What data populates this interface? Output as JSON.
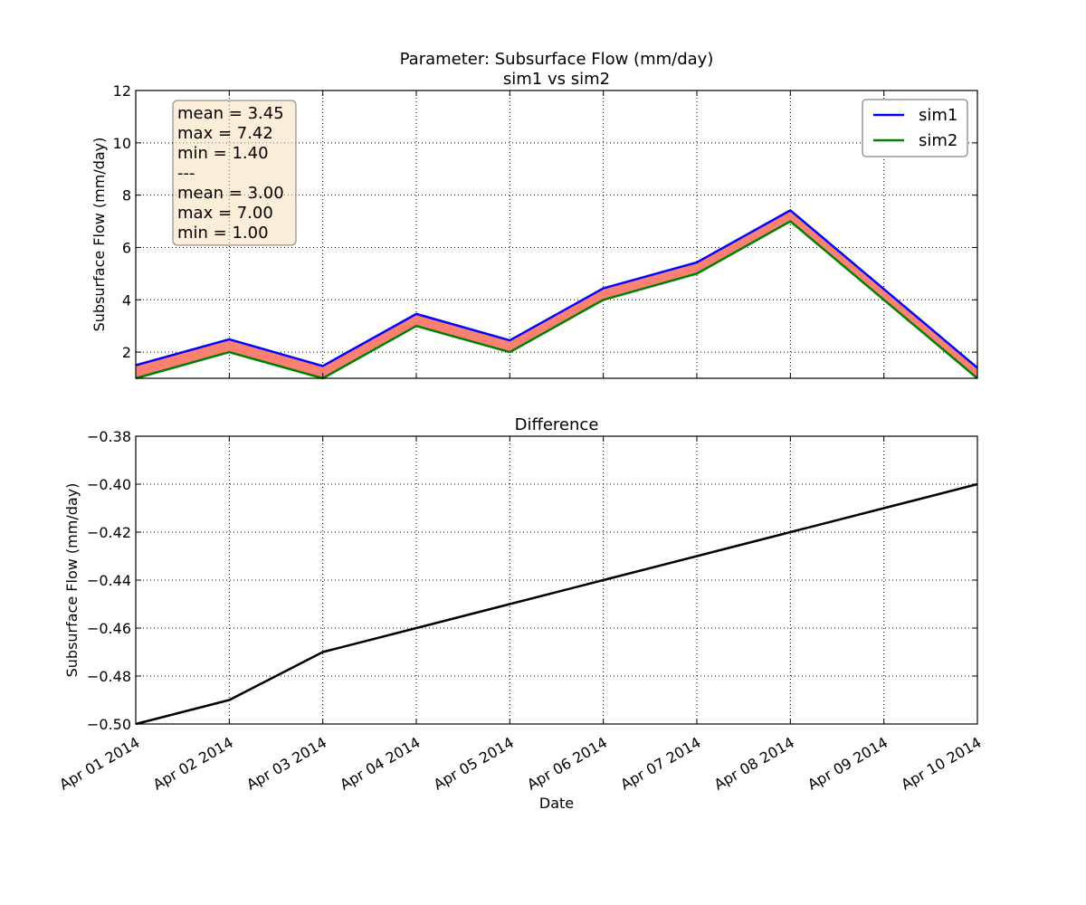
{
  "chart_data": [
    {
      "type": "line",
      "title": "Parameter: Subsurface Flow (mm/day)",
      "subtitle": "sim1 vs sim2",
      "xlabel": "",
      "ylabel": "Subsurface Flow (mm/day)",
      "ylim": [
        1,
        12
      ],
      "yticks": [
        "2",
        "4",
        "6",
        "8",
        "10",
        "12"
      ],
      "ytick_values": [
        2,
        4,
        6,
        8,
        10,
        12
      ],
      "grid": true,
      "legend_position": "top-right",
      "fill_between": {
        "color": "#fa8072"
      },
      "x": [
        "2014-04-01",
        "2014-04-02",
        "2014-04-03",
        "2014-04-04",
        "2014-04-05",
        "2014-04-06",
        "2014-04-07",
        "2014-04-08",
        "2014-04-09",
        "2014-04-10"
      ],
      "series": [
        {
          "name": "sim1",
          "color": "#0000ff",
          "values": [
            1.5,
            2.49,
            1.47,
            3.46,
            2.45,
            4.44,
            5.43,
            7.42,
            4.41,
            1.4
          ]
        },
        {
          "name": "sim2",
          "color": "#008000",
          "values": [
            1.0,
            2.0,
            1.0,
            3.0,
            2.0,
            4.0,
            5.0,
            7.0,
            4.0,
            1.0
          ]
        }
      ],
      "stats_box": [
        "mean = 3.45",
        "max = 7.42",
        "min = 1.40",
        "---",
        "mean = 3.00",
        "max = 7.00",
        "min = 1.00"
      ]
    },
    {
      "type": "line",
      "title": "Difference",
      "xlabel": "Date",
      "ylabel": "Subsurface Flow (mm/day)",
      "ylim": [
        -0.5,
        -0.38
      ],
      "yticks": [
        "−0.50",
        "−0.48",
        "−0.46",
        "−0.44",
        "−0.42",
        "−0.40",
        "−0.38"
      ],
      "ytick_values": [
        -0.5,
        -0.48,
        -0.46,
        -0.44,
        -0.42,
        -0.4,
        -0.38
      ],
      "grid": true,
      "x": [
        "2014-04-01",
        "2014-04-02",
        "2014-04-03",
        "2014-04-04",
        "2014-04-05",
        "2014-04-06",
        "2014-04-07",
        "2014-04-08",
        "2014-04-09",
        "2014-04-10"
      ],
      "xtick_labels": [
        "Apr 01 2014",
        "Apr 02 2014",
        "Apr 03 2014",
        "Apr 04 2014",
        "Apr 05 2014",
        "Apr 06 2014",
        "Apr 07 2014",
        "Apr 08 2014",
        "Apr 09 2014",
        "Apr 10 2014"
      ],
      "series": [
        {
          "color": "#000000",
          "values": [
            -0.5,
            -0.49,
            -0.47,
            -0.46,
            -0.45,
            -0.44,
            -0.43,
            -0.42,
            -0.41,
            -0.4
          ]
        }
      ]
    }
  ]
}
